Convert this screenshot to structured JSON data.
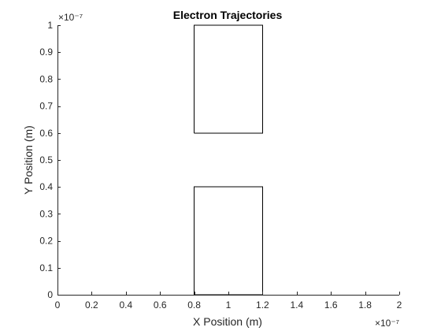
{
  "chart_data": {
    "type": "line",
    "title": "Electron Trajectories",
    "xlabel": "X Position (m)",
    "ylabel": "Y Position (m)",
    "x_exponent_label": "×10⁻⁷",
    "y_exponent_label": "×10⁻⁷",
    "xlim": [
      0,
      2e-07
    ],
    "ylim": [
      0,
      1e-07
    ],
    "x_ticks": [
      0,
      2e-08,
      4e-08,
      6e-08,
      8e-08,
      1e-07,
      1.2e-07,
      1.4e-07,
      1.6e-07,
      1.8e-07,
      2e-07
    ],
    "x_tick_labels": [
      "0",
      "0.2",
      "0.4",
      "0.6",
      "0.8",
      "1",
      "1.2",
      "1.4",
      "1.6",
      "1.8",
      "2"
    ],
    "y_ticks": [
      0,
      1e-08,
      2e-08,
      3e-08,
      4e-08,
      5e-08,
      6e-08,
      7e-08,
      8e-08,
      9e-08,
      1e-07
    ],
    "y_tick_labels": [
      "0",
      "0.1",
      "0.2",
      "0.3",
      "0.4",
      "0.5",
      "0.6",
      "0.7",
      "0.8",
      "0.9",
      "1"
    ],
    "grid": false,
    "series": [
      {
        "x": [
          8e-08,
          1.2e-07,
          1.2e-07,
          8e-08,
          8e-08
        ],
        "y": [
          0,
          0,
          4e-08,
          4e-08,
          0
        ],
        "color": "#000000"
      },
      {
        "x": [
          8e-08,
          1.2e-07,
          1.2e-07,
          8e-08,
          8e-08
        ],
        "y": [
          6e-08,
          6e-08,
          1e-07,
          1e-07,
          6e-08
        ],
        "color": "#000000"
      }
    ]
  }
}
